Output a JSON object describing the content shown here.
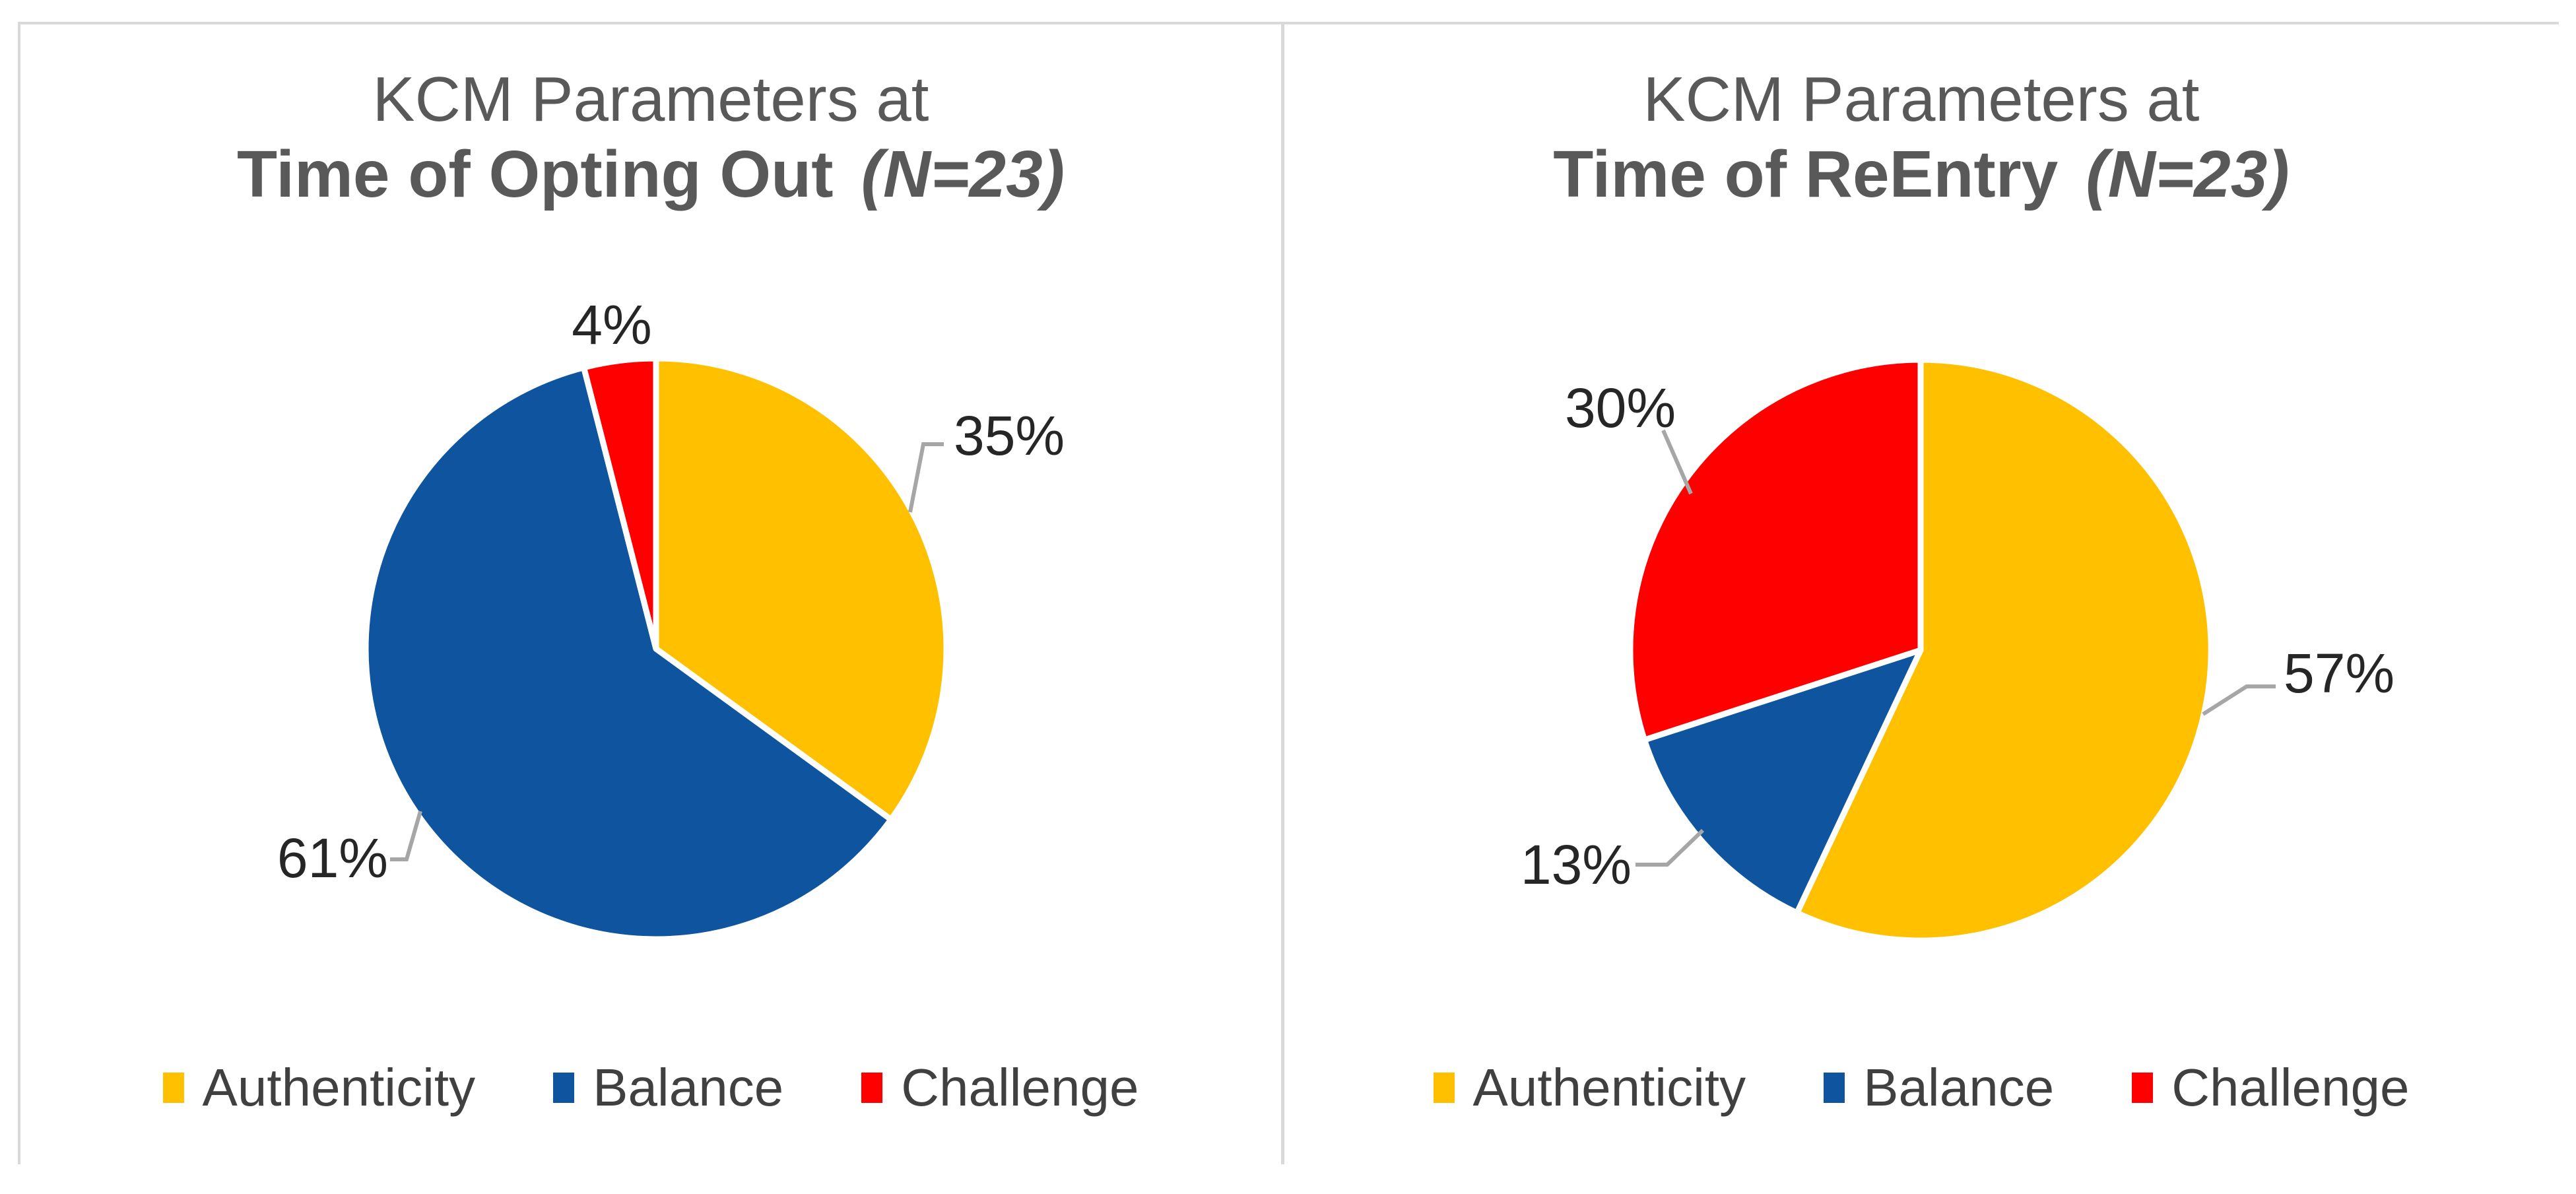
{
  "charts": [
    {
      "title_line1": "KCM Parameters at",
      "title_line2": "Time of Opting Out",
      "title_note": "(N=23)",
      "legend": [
        "Authenticity",
        "Balance",
        "Challenge"
      ]
    },
    {
      "title_line1": "KCM Parameters at",
      "title_line2": "Time of ReEntry",
      "title_note": "(N=23)",
      "legend": [
        "Authenticity",
        "Balance",
        "Challenge"
      ]
    }
  ],
  "chart_data": [
    {
      "type": "pie",
      "title": "KCM Parameters at Time of Opting Out (N=23)",
      "categories": [
        "Authenticity",
        "Balance",
        "Challenge"
      ],
      "values": [
        35,
        61,
        4
      ],
      "labels": [
        "35%",
        "61%",
        "4%"
      ],
      "unit": "%",
      "colors": [
        "#FFC000",
        "#0E549E",
        "#FF0000"
      ],
      "start_angle_deg": 0,
      "direction": "clockwise",
      "legend_position": "bottom",
      "label_text_color": "#262626",
      "leader_line_color": "#A6A6A6",
      "title_color": "#595959"
    },
    {
      "type": "pie",
      "title": "KCM Parameters at Time of ReEntry (N=23)",
      "categories": [
        "Authenticity",
        "Balance",
        "Challenge"
      ],
      "values": [
        57,
        13,
        30
      ],
      "labels": [
        "57%",
        "13%",
        "30%"
      ],
      "unit": "%",
      "colors": [
        "#FFC000",
        "#0E549E",
        "#FF0000"
      ],
      "start_angle_deg": 0,
      "direction": "clockwise",
      "legend_position": "bottom",
      "label_text_color": "#262626",
      "leader_line_color": "#A6A6A6",
      "title_color": "#595959"
    }
  ]
}
